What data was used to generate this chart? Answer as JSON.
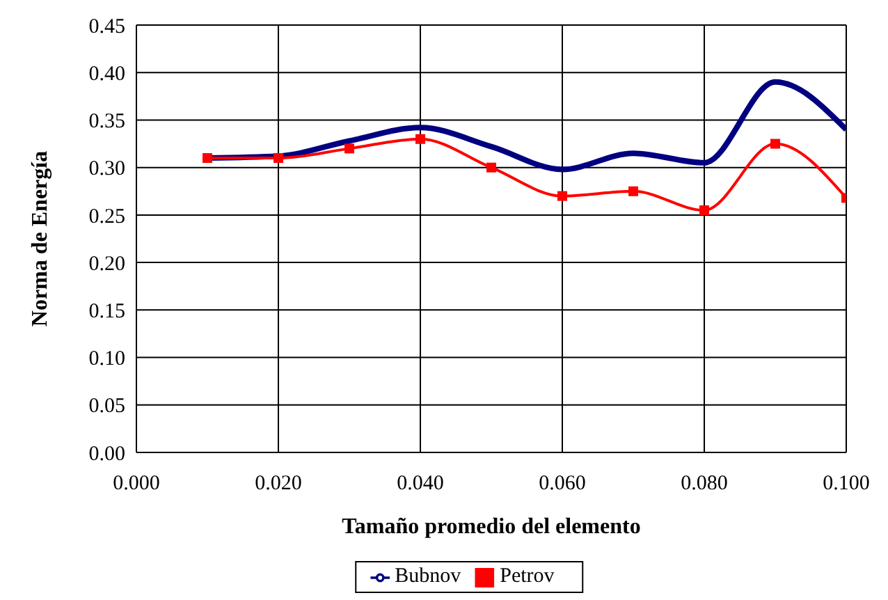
{
  "chart_data": {
    "type": "line",
    "xlabel": "Tamaño promedio del elemento",
    "ylabel": "Norma de Energía",
    "x": [
      0.01,
      0.02,
      0.03,
      0.04,
      0.05,
      0.06,
      0.07,
      0.08,
      0.09,
      0.1
    ],
    "series": [
      {
        "name": "Bubnov",
        "color": "#000080",
        "marker": "none",
        "values": [
          0.31,
          0.312,
          0.328,
          0.342,
          0.322,
          0.298,
          0.315,
          0.305,
          0.39,
          0.34
        ]
      },
      {
        "name": "Petrov",
        "color": "#ff0000",
        "marker": "square",
        "values": [
          0.31,
          0.31,
          0.32,
          0.33,
          0.3,
          0.27,
          0.275,
          0.255,
          0.325,
          0.268
        ]
      }
    ],
    "xlim": [
      0,
      0.1
    ],
    "xticks": [
      {
        "value": 0,
        "label": "0.000"
      },
      {
        "value": 0.02,
        "label": "0.020"
      },
      {
        "value": 0.04,
        "label": "0.040"
      },
      {
        "value": 0.06,
        "label": "0.060"
      },
      {
        "value": 0.08,
        "label": "0.080"
      },
      {
        "value": 0.1,
        "label": "0.100"
      }
    ],
    "ylim": [
      0,
      0.45
    ],
    "yticks": [
      {
        "value": 0,
        "label": "0.00"
      },
      {
        "value": 0.05,
        "label": "0.05"
      },
      {
        "value": 0.1,
        "label": "0.10"
      },
      {
        "value": 0.15,
        "label": "0.15"
      },
      {
        "value": 0.2,
        "label": "0.20"
      },
      {
        "value": 0.25,
        "label": "0.25"
      },
      {
        "value": 0.3,
        "label": "0.30"
      },
      {
        "value": 0.35,
        "label": "0.35"
      },
      {
        "value": 0.4,
        "label": "0.40"
      },
      {
        "value": 0.45,
        "label": "0.45"
      }
    ],
    "grid": true,
    "legend": "bottom",
    "line_style": "solid"
  }
}
